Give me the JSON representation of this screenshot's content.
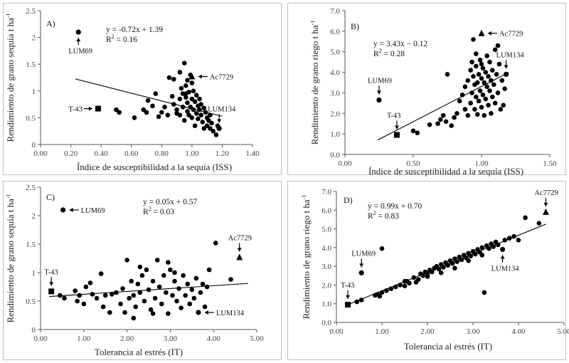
{
  "chart_data": [
    {
      "id": "A",
      "type": "scatter",
      "panel_label": "A)",
      "xlabel": "Índice de susceptibilidad a la sequía (ISS)",
      "ylabel": "Rendimiento de grano sequía t ha",
      "ylabel_sup": "-1",
      "xlim": [
        0,
        1.4
      ],
      "ylim": [
        0,
        2.5
      ],
      "xticks": [
        0,
        0.2,
        0.4,
        0.6,
        0.8,
        1.0,
        1.2,
        1.4
      ],
      "xtick_labels": [
        "0.00",
        "0.20",
        "0.40",
        "0.60",
        "0.80",
        "1.00",
        "1.20",
        "1.40"
      ],
      "yticks": [
        0,
        0.5,
        1.0,
        1.5,
        2.0,
        2.5
      ],
      "ytick_labels": [
        "0",
        "0.5",
        "1",
        "1.5",
        "2",
        "2.5"
      ],
      "equation": "y = -0.72x + 1.39",
      "r2": "R",
      "r2_value": " = 0.16",
      "trend": {
        "slope": -0.72,
        "intercept": 1.39,
        "x_from": 0.23,
        "x_to": 1.2
      },
      "highlights": [
        {
          "label": "LUM69",
          "x": 0.25,
          "y": 2.1,
          "marker": "circle"
        },
        {
          "label": "T-43",
          "x": 0.38,
          "y": 0.67,
          "marker": "square"
        },
        {
          "label": "Ac7729",
          "x": 1.0,
          "y": 1.27,
          "marker": "triangle"
        },
        {
          "label": "LUM134",
          "x": 1.18,
          "y": 0.3,
          "marker": "circle"
        }
      ],
      "points": [
        [
          0.5,
          0.65
        ],
        [
          0.52,
          0.6
        ],
        [
          0.62,
          0.5
        ],
        [
          0.68,
          0.65
        ],
        [
          0.7,
          0.6
        ],
        [
          0.71,
          0.82
        ],
        [
          0.74,
          0.72
        ],
        [
          0.76,
          0.95
        ],
        [
          0.78,
          0.52
        ],
        [
          0.8,
          0.6
        ],
        [
          0.82,
          0.7
        ],
        [
          0.84,
          0.55
        ],
        [
          0.85,
          1.25
        ],
        [
          0.87,
          0.9
        ],
        [
          0.88,
          1.22
        ],
        [
          0.88,
          0.75
        ],
        [
          0.9,
          0.58
        ],
        [
          0.92,
          0.85
        ],
        [
          0.92,
          0.55
        ],
        [
          0.93,
          1.05
        ],
        [
          0.94,
          0.95
        ],
        [
          0.94,
          0.7
        ],
        [
          0.95,
          1.52
        ],
        [
          0.95,
          0.45
        ],
        [
          0.96,
          0.88
        ],
        [
          0.96,
          1.1
        ],
        [
          0.97,
          0.78
        ],
        [
          0.97,
          0.62
        ],
        [
          0.98,
          0.98
        ],
        [
          0.98,
          0.55
        ],
        [
          0.99,
          1.3
        ],
        [
          0.99,
          0.7
        ],
        [
          1.0,
          0.85
        ],
        [
          1.0,
          0.5
        ],
        [
          1.01,
          1.0
        ],
        [
          1.01,
          0.65
        ],
        [
          1.02,
          0.8
        ],
        [
          1.02,
          0.35
        ],
        [
          1.03,
          0.92
        ],
        [
          1.03,
          0.58
        ],
        [
          1.04,
          0.72
        ],
        [
          1.04,
          0.48
        ],
        [
          1.05,
          0.85
        ],
        [
          1.05,
          0.65
        ],
        [
          1.06,
          0.55
        ],
        [
          1.06,
          0.75
        ],
        [
          1.07,
          0.42
        ],
        [
          1.08,
          0.68
        ],
        [
          1.08,
          0.3
        ],
        [
          1.09,
          0.6
        ],
        [
          1.1,
          0.5
        ],
        [
          1.1,
          0.35
        ],
        [
          1.11,
          0.45
        ],
        [
          1.12,
          0.3
        ],
        [
          1.13,
          0.4
        ],
        [
          1.14,
          0.25
        ],
        [
          1.16,
          0.18
        ],
        [
          1.17,
          0.35
        ],
        [
          0.92,
          1.35
        ],
        [
          1.12,
          0.55
        ],
        [
          0.97,
          1.2
        ],
        [
          1.0,
          1.15
        ],
        [
          0.9,
          0.65
        ],
        [
          0.96,
          0.95
        ]
      ]
    },
    {
      "id": "B",
      "type": "scatter",
      "panel_label": "B)",
      "xlabel": "Índice de susceptibilidad a la sequía (ISS)",
      "ylabel": "Rendimiento de grano riego t ha",
      "ylabel_sup": "-1",
      "xlim": [
        0,
        1.5
      ],
      "ylim": [
        0,
        7
      ],
      "xticks": [
        0,
        0.5,
        1.0,
        1.5
      ],
      "xtick_labels": [
        "0.00",
        "0.50",
        "1.00",
        "1.50"
      ],
      "yticks": [
        0,
        1,
        2,
        3,
        4,
        5,
        6,
        7
      ],
      "ytick_labels": [
        "0.0",
        "1.0",
        "2.0",
        "3.0",
        "4.0",
        "5.0",
        "6.0",
        "7.0"
      ],
      "equation": "y = 3.43x − 0.12",
      "r2": "R",
      "r2_value": " = 0.28",
      "trend": {
        "slope": 3.43,
        "intercept": -0.12,
        "x_from": 0.24,
        "x_to": 1.2
      },
      "highlights": [
        {
          "label": "LUM69",
          "x": 0.25,
          "y": 2.65,
          "marker": "circle"
        },
        {
          "label": "T-43",
          "x": 0.38,
          "y": 0.95,
          "marker": "square"
        },
        {
          "label": "Ac7729",
          "x": 1.0,
          "y": 5.9,
          "marker": "triangle"
        },
        {
          "label": "LUM134",
          "x": 1.18,
          "y": 3.9,
          "marker": "circle"
        }
      ],
      "points": [
        [
          0.5,
          1.15
        ],
        [
          0.53,
          1.05
        ],
        [
          0.62,
          1.45
        ],
        [
          0.68,
          1.5
        ],
        [
          0.7,
          1.7
        ],
        [
          0.72,
          1.9
        ],
        [
          0.74,
          1.6
        ],
        [
          0.75,
          3.9
        ],
        [
          0.78,
          1.4
        ],
        [
          0.8,
          1.8
        ],
        [
          0.82,
          2.0
        ],
        [
          0.84,
          2.6
        ],
        [
          0.86,
          2.9
        ],
        [
          0.88,
          2.2
        ],
        [
          0.88,
          3.3
        ],
        [
          0.9,
          3.6
        ],
        [
          0.9,
          1.9
        ],
        [
          0.92,
          4.1
        ],
        [
          0.92,
          2.5
        ],
        [
          0.93,
          3.0
        ],
        [
          0.94,
          3.8
        ],
        [
          0.94,
          5.6
        ],
        [
          0.95,
          2.2
        ],
        [
          0.95,
          3.4
        ],
        [
          0.96,
          4.3
        ],
        [
          0.96,
          2.8
        ],
        [
          0.97,
          3.5
        ],
        [
          0.97,
          1.95
        ],
        [
          0.98,
          3.9
        ],
        [
          0.98,
          2.6
        ],
        [
          0.99,
          4.6
        ],
        [
          0.99,
          3.1
        ],
        [
          1.0,
          3.7
        ],
        [
          1.0,
          2.3
        ],
        [
          1.01,
          4.2
        ],
        [
          1.01,
          2.9
        ],
        [
          1.02,
          3.5
        ],
        [
          1.02,
          1.9
        ],
        [
          1.03,
          4.0
        ],
        [
          1.03,
          2.7
        ],
        [
          1.04,
          3.3
        ],
        [
          1.04,
          4.8
        ],
        [
          1.05,
          3.8
        ],
        [
          1.05,
          2.4
        ],
        [
          1.06,
          3.1
        ],
        [
          1.06,
          4.5
        ],
        [
          1.07,
          2.0
        ],
        [
          1.07,
          3.6
        ],
        [
          1.08,
          4.1
        ],
        [
          1.08,
          2.8
        ],
        [
          1.09,
          3.4
        ],
        [
          1.1,
          5.1
        ],
        [
          1.1,
          2.5
        ],
        [
          1.11,
          3.9
        ],
        [
          1.12,
          3.0
        ],
        [
          1.13,
          4.4
        ],
        [
          1.14,
          2.2
        ],
        [
          1.15,
          3.6
        ],
        [
          1.16,
          2.4
        ],
        [
          1.17,
          3.2
        ],
        [
          1.12,
          5.3
        ],
        [
          0.96,
          4.9
        ],
        [
          1.0,
          4.4
        ],
        [
          0.93,
          4.5
        ]
      ]
    },
    {
      "id": "C",
      "type": "scatter",
      "panel_label": "C)",
      "xlabel": "Tolerancia al  estrés (IT)",
      "ylabel": "Rendimiento de grano sequía t ha",
      "ylabel_sup": "-1",
      "xlim": [
        0,
        5
      ],
      "ylim": [
        0,
        2.5
      ],
      "xticks": [
        0,
        1,
        2,
        3,
        4,
        5
      ],
      "xtick_labels": [
        "0.00",
        "1.00",
        "2.00",
        "3.00",
        "4.00",
        "5.00"
      ],
      "yticks": [
        0,
        0.5,
        1.0,
        1.5,
        2.0,
        2.5
      ],
      "ytick_labels": [
        "0",
        "0.5",
        "1",
        "1.5",
        "2",
        "2.5"
      ],
      "equation": "y = 0.05x + 0.57",
      "r2": "R",
      "r2_value": " = 0.03",
      "trend": {
        "slope": 0.05,
        "intercept": 0.57,
        "x_from": 0.2,
        "x_to": 4.8
      },
      "highlights": [
        {
          "label": "LUM69",
          "x": 0.52,
          "y": 2.1,
          "marker": "circle"
        },
        {
          "label": "T-43",
          "x": 0.25,
          "y": 0.67,
          "marker": "square"
        },
        {
          "label": "Ac7729",
          "x": 4.6,
          "y": 1.27,
          "marker": "triangle"
        },
        {
          "label": "LUM134",
          "x": 3.65,
          "y": 0.3,
          "marker": "circle"
        }
      ],
      "points": [
        [
          0.45,
          0.6
        ],
        [
          0.55,
          0.55
        ],
        [
          0.8,
          0.68
        ],
        [
          0.85,
          0.5
        ],
        [
          0.9,
          0.6
        ],
        [
          1.0,
          0.45
        ],
        [
          1.05,
          0.75
        ],
        [
          1.15,
          0.82
        ],
        [
          1.3,
          0.55
        ],
        [
          1.4,
          0.98
        ],
        [
          1.45,
          0.4
        ],
        [
          1.5,
          0.6
        ],
        [
          1.6,
          0.3
        ],
        [
          1.65,
          0.62
        ],
        [
          1.75,
          0.65
        ],
        [
          1.85,
          0.45
        ],
        [
          1.9,
          0.72
        ],
        [
          1.95,
          0.3
        ],
        [
          2.0,
          1.22
        ],
        [
          2.05,
          0.55
        ],
        [
          2.1,
          0.85
        ],
        [
          2.15,
          0.6
        ],
        [
          2.2,
          0.4
        ],
        [
          2.25,
          0.8
        ],
        [
          2.3,
          0.65
        ],
        [
          2.35,
          0.95
        ],
        [
          2.4,
          0.5
        ],
        [
          2.45,
          1.05
        ],
        [
          2.5,
          0.7
        ],
        [
          2.55,
          0.35
        ],
        [
          2.6,
          0.85
        ],
        [
          2.65,
          0.55
        ],
        [
          2.7,
          1.22
        ],
        [
          2.75,
          0.75
        ],
        [
          2.8,
          0.45
        ],
        [
          2.85,
          0.95
        ],
        [
          2.9,
          0.65
        ],
        [
          2.95,
          0.28
        ],
        [
          3.0,
          1.05
        ],
        [
          3.05,
          0.6
        ],
        [
          3.1,
          0.85
        ],
        [
          3.15,
          0.5
        ],
        [
          3.2,
          0.72
        ],
        [
          3.25,
          0.38
        ],
        [
          3.3,
          0.95
        ],
        [
          3.35,
          0.6
        ],
        [
          3.4,
          0.8
        ],
        [
          3.45,
          0.45
        ],
        [
          3.5,
          0.7
        ],
        [
          3.55,
          0.55
        ],
        [
          3.6,
          0.9
        ],
        [
          3.7,
          0.65
        ],
        [
          3.75,
          0.8
        ],
        [
          3.8,
          0.4
        ],
        [
          3.85,
          0.75
        ],
        [
          3.9,
          1.05
        ],
        [
          4.05,
          1.52
        ],
        [
          4.4,
          0.88
        ],
        [
          2.15,
          0.2
        ],
        [
          1.2,
          0.62
        ],
        [
          2.95,
          1.18
        ],
        [
          3.1,
          1.0
        ],
        [
          2.6,
          0.28
        ],
        [
          2.3,
          1.1
        ]
      ]
    },
    {
      "id": "D",
      "type": "scatter",
      "panel_label": "D)",
      "xlabel": "Tolerancia al estrés (IT)",
      "ylabel": "Rendimiento de grano riego t ha",
      "ylabel_sup": "-1",
      "xlim": [
        0,
        5
      ],
      "ylim": [
        0,
        7
      ],
      "xticks": [
        0,
        1,
        2,
        3,
        4,
        5
      ],
      "xtick_labels": [
        "0.00",
        "1.00",
        "2.00",
        "3.00",
        "4.00",
        "5.00"
      ],
      "yticks": [
        0,
        1,
        2,
        3,
        4,
        5,
        6,
        7
      ],
      "ytick_labels": [
        "0.0",
        "1.0",
        "2.0",
        "3.0",
        "4.0",
        "5.0",
        "6.0",
        "7.0"
      ],
      "equation": "y = 0.99x + 0.70",
      "r2": "R",
      "r2_value": " = 0.83",
      "trend": {
        "slope": 0.99,
        "intercept": 0.7,
        "x_from": 0.2,
        "x_to": 4.6
      },
      "highlights": [
        {
          "label": "LUM69",
          "x": 0.55,
          "y": 2.65,
          "marker": "circle"
        },
        {
          "label": "T-43",
          "x": 0.25,
          "y": 0.95,
          "marker": "square"
        },
        {
          "label": "Ac7729",
          "x": 4.6,
          "y": 5.9,
          "marker": "triangle"
        },
        {
          "label": "LUM134",
          "x": 3.65,
          "y": 3.9,
          "marker": "circle"
        }
      ],
      "points": [
        [
          0.45,
          1.1
        ],
        [
          0.55,
          1.2
        ],
        [
          0.85,
          1.45
        ],
        [
          0.9,
          1.5
        ],
        [
          0.95,
          1.4
        ],
        [
          1.0,
          1.6
        ],
        [
          1.0,
          3.95
        ],
        [
          1.1,
          1.7
        ],
        [
          1.2,
          1.8
        ],
        [
          1.3,
          1.9
        ],
        [
          1.4,
          2.0
        ],
        [
          1.5,
          1.95
        ],
        [
          1.55,
          2.2
        ],
        [
          1.6,
          2.1
        ],
        [
          1.7,
          2.4
        ],
        [
          1.8,
          2.3
        ],
        [
          1.85,
          2.6
        ],
        [
          1.9,
          2.5
        ],
        [
          1.95,
          2.7
        ],
        [
          2.0,
          2.6
        ],
        [
          2.05,
          2.8
        ],
        [
          2.1,
          2.7
        ],
        [
          2.15,
          2.9
        ],
        [
          2.2,
          3.0
        ],
        [
          2.25,
          2.85
        ],
        [
          2.3,
          3.1
        ],
        [
          2.35,
          2.95
        ],
        [
          2.4,
          3.2
        ],
        [
          2.45,
          3.05
        ],
        [
          2.5,
          3.3
        ],
        [
          2.55,
          3.15
        ],
        [
          2.6,
          3.4
        ],
        [
          2.65,
          3.25
        ],
        [
          2.7,
          3.5
        ],
        [
          2.75,
          3.35
        ],
        [
          2.8,
          3.6
        ],
        [
          2.85,
          3.45
        ],
        [
          2.9,
          3.7
        ],
        [
          2.95,
          3.55
        ],
        [
          3.0,
          3.8
        ],
        [
          3.05,
          3.65
        ],
        [
          3.1,
          3.9
        ],
        [
          3.15,
          3.75
        ],
        [
          3.2,
          4.0
        ],
        [
          3.25,
          1.6
        ],
        [
          3.3,
          4.1
        ],
        [
          3.35,
          3.95
        ],
        [
          3.4,
          4.2
        ],
        [
          3.45,
          4.05
        ],
        [
          3.5,
          4.3
        ],
        [
          3.55,
          4.15
        ],
        [
          3.7,
          4.4
        ],
        [
          3.8,
          4.5
        ],
        [
          3.9,
          4.6
        ],
        [
          4.0,
          4.4
        ],
        [
          4.15,
          5.6
        ],
        [
          4.45,
          5.3
        ],
        [
          2.0,
          2.45
        ],
        [
          2.3,
          2.65
        ],
        [
          2.6,
          2.9
        ],
        [
          2.9,
          3.3
        ],
        [
          1.5,
          2.2
        ],
        [
          1.75,
          2.15
        ],
        [
          3.2,
          3.6
        ]
      ]
    }
  ]
}
